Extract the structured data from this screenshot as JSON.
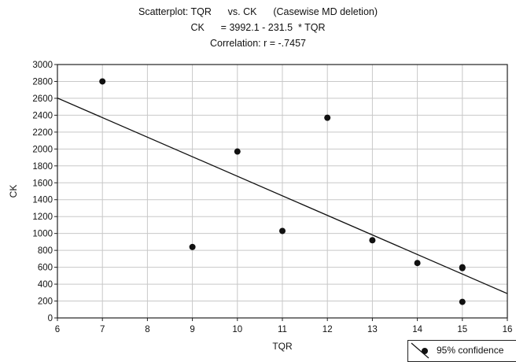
{
  "chart_data": {
    "type": "scatter",
    "title_lines": [
      "Scatterplot: TQR      vs. CK      (Casewise MD deletion)",
      "CK      = 3992.1 - 231.5  * TQR",
      "Correlation: r = -.7457"
    ],
    "xlabel": "TQR",
    "ylabel": "CK",
    "xlim": [
      6,
      16
    ],
    "ylim": [
      0,
      3000
    ],
    "x_ticks": [
      6,
      7,
      8,
      9,
      10,
      11,
      12,
      13,
      14,
      15,
      16
    ],
    "y_ticks": [
      0,
      200,
      400,
      600,
      800,
      1000,
      1200,
      1400,
      1600,
      1800,
      2000,
      2200,
      2400,
      2600,
      2800,
      3000
    ],
    "grid": true,
    "points": [
      {
        "x": 7,
        "y": 2800
      },
      {
        "x": 9,
        "y": 840
      },
      {
        "x": 10,
        "y": 1970
      },
      {
        "x": 11,
        "y": 1030
      },
      {
        "x": 12,
        "y": 2370
      },
      {
        "x": 13,
        "y": 920
      },
      {
        "x": 14,
        "y": 650
      },
      {
        "x": 15,
        "y": 600
      },
      {
        "x": 15,
        "y": 590
      },
      {
        "x": 15,
        "y": 190
      }
    ],
    "regression": {
      "intercept": 3992.1,
      "slope": -231.5
    },
    "legend": {
      "label": "95% confidence",
      "placement": "bottom-right"
    },
    "colors": {
      "marker": "#111111",
      "line": "#111111",
      "grid": "#c8c8c8"
    }
  }
}
